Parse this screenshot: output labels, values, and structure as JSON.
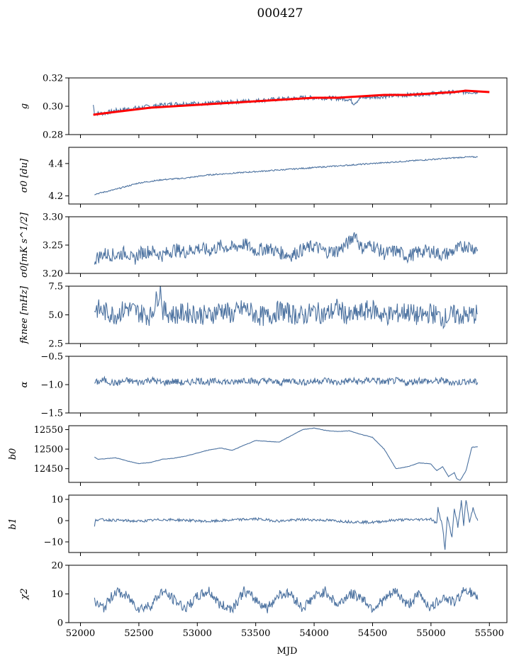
{
  "chart_data": {
    "type": "line",
    "title": "000427",
    "xlabel": "MJD",
    "xlim": [
      51900,
      55650
    ],
    "xticks": [
      52000,
      52500,
      53000,
      53500,
      54000,
      54500,
      55000,
      55500
    ],
    "xtick_labels": [
      "52000",
      "52500",
      "53000",
      "53500",
      "54000",
      "54500",
      "55000",
      "55500"
    ],
    "series_color": "#4c72a0",
    "fit_color": "#ff0000",
    "panels": [
      {
        "name": "g",
        "ylabel": "g",
        "ylim": [
          0.28,
          0.32
        ],
        "yticks": [
          0.28,
          0.3,
          0.32
        ],
        "ytick_labels": [
          "0.28",
          "0.30",
          "0.32"
        ],
        "series": [
          {
            "name": "g",
            "color": "#4c72a0",
            "x": [
              52110,
              52120,
              52200,
              52300,
              52500,
              52700,
              52900,
              53100,
              53300,
              53500,
              53700,
              53900,
              54100,
              54300,
              54340,
              54400,
              54600,
              54800,
              55000,
              55200,
              55400
            ],
            "y": [
              0.301,
              0.295,
              0.295,
              0.297,
              0.299,
              0.301,
              0.302,
              0.302,
              0.303,
              0.304,
              0.305,
              0.306,
              0.306,
              0.305,
              0.302,
              0.306,
              0.307,
              0.308,
              0.309,
              0.31,
              0.31
            ]
          },
          {
            "name": "g model",
            "color": "#ff0000",
            "x": [
              52110,
              52200,
              52400,
              52600,
              52800,
              53000,
              53200,
              53400,
              53600,
              53800,
              54000,
              54200,
              54400,
              54600,
              54800,
              55000,
              55200,
              55300,
              55500
            ],
            "y": [
              0.294,
              0.295,
              0.297,
              0.299,
              0.3,
              0.301,
              0.302,
              0.303,
              0.304,
              0.305,
              0.306,
              0.306,
              0.307,
              0.308,
              0.308,
              0.309,
              0.31,
              0.311,
              0.31
            ]
          }
        ]
      },
      {
        "name": "sigma0-du",
        "ylabel": "σ0 [du]",
        "ylim": [
          4.15,
          4.5
        ],
        "yticks": [
          4.2,
          4.4
        ],
        "ytick_labels": [
          "4.2",
          "4.4"
        ],
        "series": [
          {
            "name": "sigma0 du",
            "color": "#4c72a0",
            "x": [
              52120,
              52300,
              52500,
              52700,
              52900,
              53100,
              53300,
              53500,
              53700,
              53900,
              54100,
              54300,
              54500,
              54700,
              54900,
              55100,
              55300,
              55400
            ],
            "y": [
              4.21,
              4.24,
              4.28,
              4.3,
              4.31,
              4.33,
              4.34,
              4.35,
              4.36,
              4.37,
              4.38,
              4.39,
              4.4,
              4.41,
              4.42,
              4.43,
              4.44,
              4.44
            ]
          }
        ]
      },
      {
        "name": "sigma0-mk",
        "ylabel": "σ0[mK s^1/2]",
        "ylim": [
          3.2,
          3.3
        ],
        "yticks": [
          3.2,
          3.25,
          3.3
        ],
        "ytick_labels": [
          "3.20",
          "3.25",
          "3.30"
        ],
        "series": [
          {
            "name": "sigma0 mK",
            "color": "#4c72a0",
            "x": [
              52120,
              52200,
              52300,
              52400,
              52450,
              52500,
              52600,
              52700,
              52800,
              52900,
              53000,
              53100,
              53200,
              53300,
              53400,
              53500,
              53600,
              53700,
              53800,
              53900,
              54000,
              54100,
              54200,
              54300,
              54350,
              54400,
              54500,
              54600,
              54700,
              54800,
              54900,
              55000,
              55100,
              55200,
              55300,
              55400
            ],
            "y": [
              3.225,
              3.235,
              3.232,
              3.238,
              3.222,
              3.235,
              3.24,
              3.232,
              3.242,
              3.238,
              3.245,
              3.24,
              3.248,
              3.245,
              3.252,
              3.24,
              3.245,
              3.237,
              3.232,
              3.242,
              3.248,
              3.238,
              3.24,
              3.255,
              3.272,
              3.245,
              3.25,
              3.235,
              3.24,
              3.23,
              3.238,
              3.24,
              3.232,
              3.24,
              3.25,
              3.242
            ]
          }
        ]
      },
      {
        "name": "fknee",
        "ylabel": "fknee [mHz]",
        "ylim": [
          2.5,
          7.5
        ],
        "yticks": [
          2.5,
          5.0,
          7.5
        ],
        "ytick_labels": [
          "2.5",
          "5.0",
          "7.5"
        ],
        "series": [
          {
            "name": "fknee",
            "color": "#4c72a0",
            "x": [
              52120,
              52200,
              52300,
              52400,
              52500,
              52600,
              52690,
              52700,
              52800,
              52900,
              53000,
              53100,
              53200,
              53300,
              53400,
              53500,
              53600,
              53700,
              53800,
              53900,
              54000,
              54100,
              54200,
              54300,
              54400,
              54500,
              54600,
              54700,
              54800,
              54900,
              55000,
              55100,
              55200,
              55300,
              55400
            ],
            "y": [
              5.6,
              5.3,
              5.0,
              5.6,
              5.2,
              4.9,
              7.4,
              5.4,
              5.0,
              5.2,
              5.1,
              4.9,
              5.5,
              5.0,
              5.6,
              5.0,
              4.8,
              5.4,
              5.1,
              4.9,
              5.3,
              5.0,
              5.6,
              4.8,
              5.2,
              5.5,
              4.9,
              5.1,
              5.3,
              4.8,
              5.2,
              4.7,
              5.0,
              4.9,
              5.1
            ]
          }
        ]
      },
      {
        "name": "alpha",
        "ylabel": "α",
        "ylim": [
          -1.5,
          -0.5
        ],
        "yticks": [
          -1.5,
          -1.0,
          -0.5
        ],
        "ytick_labels": [
          "−1.5",
          "−1.0",
          "−0.5"
        ],
        "series": [
          {
            "name": "alpha",
            "color": "#4c72a0",
            "x": [
              52120,
              52200,
              52300,
              52400,
              52500,
              52600,
              52700,
              52800,
              52900,
              53000,
              53100,
              53200,
              53300,
              53400,
              53500,
              53600,
              53700,
              53800,
              53900,
              54000,
              54100,
              54200,
              54300,
              54400,
              54500,
              54600,
              54700,
              54800,
              54900,
              55000,
              55100,
              55200,
              55300,
              55400
            ],
            "y": [
              -0.97,
              -0.92,
              -0.98,
              -0.93,
              -0.96,
              -0.91,
              -0.97,
              -0.94,
              -0.98,
              -0.92,
              -0.96,
              -0.93,
              -0.97,
              -0.91,
              -0.95,
              -0.93,
              -0.97,
              -0.92,
              -0.96,
              -0.94,
              -0.92,
              -0.97,
              -0.93,
              -0.95,
              -0.91,
              -0.96,
              -0.93,
              -0.97,
              -0.92,
              -0.95,
              -0.93,
              -0.97,
              -0.94,
              -0.96
            ]
          }
        ]
      },
      {
        "name": "b0",
        "ylabel": "b0",
        "ylim": [
          12415,
          12560
        ],
        "yticks": [
          12450,
          12500,
          12550
        ],
        "ytick_labels": [
          "12450",
          "12500",
          "12550"
        ],
        "series": [
          {
            "name": "b0",
            "color": "#4c72a0",
            "x": [
              52120,
              52150,
              52300,
              52400,
              52500,
              52600,
              52700,
              52800,
              52900,
              53000,
              53100,
              53200,
              53300,
              53400,
              53500,
              53600,
              53700,
              53800,
              53900,
              54000,
              54100,
              54200,
              54300,
              54400,
              54500,
              54600,
              54700,
              54800,
              54900,
              55000,
              55050,
              55100,
              55150,
              55200,
              55220,
              55250,
              55300,
              55350,
              55400
            ],
            "y": [
              12480,
              12474,
              12478,
              12470,
              12463,
              12466,
              12474,
              12477,
              12482,
              12490,
              12498,
              12503,
              12497,
              12510,
              12522,
              12520,
              12518,
              12534,
              12550,
              12554,
              12548,
              12545,
              12547,
              12538,
              12530,
              12500,
              12450,
              12455,
              12465,
              12462,
              12445,
              12455,
              12430,
              12440,
              12425,
              12420,
              12445,
              12505,
              12506
            ]
          }
        ]
      },
      {
        "name": "b1",
        "ylabel": "b1",
        "ylim": [
          -15,
          12
        ],
        "yticks": [
          -10,
          0,
          10
        ],
        "ytick_labels": [
          "−10",
          "0",
          "10"
        ],
        "series": [
          {
            "name": "b1",
            "color": "#4c72a0",
            "x": [
              52120,
              52130,
              52300,
              52500,
              52700,
              52900,
              53100,
              53300,
              53500,
              53700,
              53900,
              54100,
              54300,
              54500,
              54700,
              54900,
              55000,
              55050,
              55060,
              55100,
              55120,
              55140,
              55180,
              55200,
              55230,
              55260,
              55280,
              55300,
              55330,
              55360,
              55400
            ],
            "y": [
              -3,
              0.5,
              0.2,
              -0.3,
              0.5,
              0.2,
              -0.4,
              0.3,
              0.8,
              -0.2,
              0.5,
              0.2,
              -0.5,
              -0.8,
              0.3,
              0.5,
              0.8,
              -1.5,
              6,
              -3,
              -14,
              2,
              -8,
              6,
              -3,
              9,
              -2,
              10,
              -1,
              6,
              0
            ]
          }
        ]
      },
      {
        "name": "chi2",
        "ylabel": "χ2",
        "ylim": [
          0,
          20
        ],
        "yticks": [
          0,
          10,
          20
        ],
        "ytick_labels": [
          "0",
          "10",
          "20"
        ],
        "series": [
          {
            "name": "chi2",
            "color": "#4c72a0",
            "x": [
              52120,
              52200,
              52300,
              52400,
              52500,
              52600,
              52700,
              52800,
              52900,
              53000,
              53100,
              53200,
              53300,
              53400,
              53500,
              53600,
              53700,
              53800,
              53900,
              54000,
              54100,
              54200,
              54300,
              54400,
              54500,
              54600,
              54700,
              54800,
              54900,
              55000,
              55100,
              55200,
              55300,
              55400
            ],
            "y": [
              7,
              5,
              11,
              9,
              5,
              6,
              11,
              8,
              5,
              9,
              11,
              6,
              5,
              11,
              8,
              5,
              10,
              10,
              5,
              9,
              11,
              6,
              10,
              9,
              5,
              8,
              11,
              6,
              10,
              5,
              9,
              7,
              12,
              8
            ]
          }
        ]
      }
    ]
  }
}
